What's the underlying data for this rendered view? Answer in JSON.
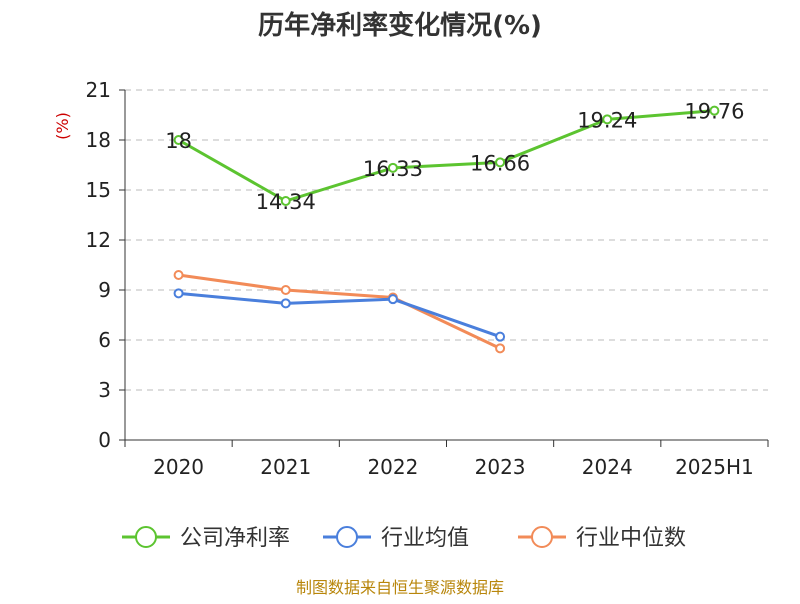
{
  "chart_data": {
    "type": "line",
    "title": "历年净利率变化情况(%)",
    "y_unit": "(%)",
    "categories": [
      "2020",
      "2021",
      "2022",
      "2023",
      "2024",
      "2025H1"
    ],
    "ylim": [
      0,
      21
    ],
    "yticks": [
      0,
      3,
      6,
      9,
      12,
      15,
      18,
      21
    ],
    "grid": true,
    "legend_position": "bottom",
    "series": [
      {
        "name": "公司净利率",
        "color": "#5cc430",
        "values": [
          18,
          14.34,
          16.33,
          16.66,
          19.24,
          19.76
        ],
        "labels": [
          "18",
          "14.34",
          "16.33",
          "16.66",
          "19.24",
          "19.76"
        ]
      },
      {
        "name": "行业均值",
        "color": "#4a7fdc",
        "values": [
          8.8,
          8.2,
          8.45,
          6.2,
          null,
          null
        ]
      },
      {
        "name": "行业中位数",
        "color": "#f28b58",
        "values": [
          9.9,
          9.0,
          8.55,
          5.5,
          null,
          null
        ]
      }
    ],
    "source_note": "制图数据来自恒生聚源数据库"
  }
}
